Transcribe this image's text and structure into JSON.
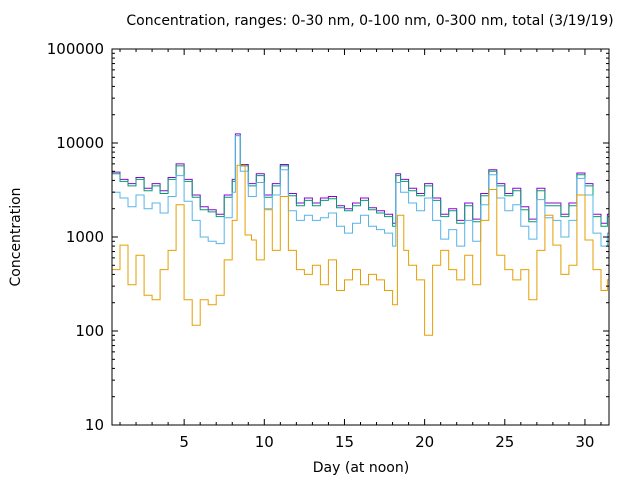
{
  "chart_data": {
    "type": "line",
    "title": "Concentration, ranges: 0-30 nm, 0-100 nm, 0-300 nm, total (3/19/19)",
    "xlabel": "Day (at noon)",
    "ylabel": "Concentration",
    "xlim": [
      0.5,
      31.5
    ],
    "ylim": [
      10,
      100000
    ],
    "yscale": "log",
    "xticks": [
      5,
      10,
      15,
      20,
      25,
      30
    ],
    "yticks": [
      10,
      100,
      1000,
      10000,
      100000
    ],
    "grid": false,
    "legend": "none",
    "series": [
      {
        "name": "total",
        "color": "#9400d3",
        "points": [
          [
            0.5,
            4900
          ],
          [
            1,
            4100
          ],
          [
            1.5,
            3700
          ],
          [
            2,
            4300
          ],
          [
            2.5,
            3300
          ],
          [
            3,
            3700
          ],
          [
            3.5,
            3100
          ],
          [
            4,
            4300
          ],
          [
            4.5,
            6000
          ],
          [
            5,
            4100
          ],
          [
            5.5,
            2800
          ],
          [
            6,
            2100
          ],
          [
            6.5,
            1950
          ],
          [
            7,
            1750
          ],
          [
            7.5,
            2800
          ],
          [
            8,
            4100
          ],
          [
            8.2,
            12500
          ],
          [
            8.5,
            5900
          ],
          [
            9,
            3700
          ],
          [
            9.5,
            4700
          ],
          [
            10,
            2800
          ],
          [
            10.5,
            3700
          ],
          [
            11,
            5900
          ],
          [
            11.5,
            2900
          ],
          [
            12,
            2300
          ],
          [
            12.5,
            2600
          ],
          [
            13,
            2300
          ],
          [
            13.5,
            2600
          ],
          [
            14,
            2700
          ],
          [
            14.5,
            2150
          ],
          [
            15,
            2000
          ],
          [
            15.5,
            2300
          ],
          [
            16,
            2600
          ],
          [
            16.5,
            2050
          ],
          [
            17,
            1900
          ],
          [
            17.5,
            1750
          ],
          [
            18,
            1400
          ],
          [
            18.2,
            4700
          ],
          [
            18.5,
            4100
          ],
          [
            19,
            3300
          ],
          [
            19.5,
            2900
          ],
          [
            20,
            3700
          ],
          [
            20.5,
            2600
          ],
          [
            21,
            1750
          ],
          [
            21.5,
            2000
          ],
          [
            22,
            1500
          ],
          [
            22.5,
            2300
          ],
          [
            23,
            1550
          ],
          [
            23.5,
            2900
          ],
          [
            24,
            5200
          ],
          [
            24.5,
            3700
          ],
          [
            25,
            2900
          ],
          [
            25.5,
            3300
          ],
          [
            26,
            2100
          ],
          [
            26.5,
            1550
          ],
          [
            27,
            3300
          ],
          [
            27.5,
            2300
          ],
          [
            28,
            2300
          ],
          [
            28.5,
            1750
          ],
          [
            29,
            2300
          ],
          [
            29.5,
            4800
          ],
          [
            30,
            3700
          ],
          [
            30.5,
            1750
          ],
          [
            31,
            1400
          ],
          [
            31.4,
            1750
          ]
        ]
      },
      {
        "name": "0-300 nm",
        "color": "#009e73",
        "points": [
          [
            0.5,
            4700
          ],
          [
            1,
            3900
          ],
          [
            1.5,
            3500
          ],
          [
            2,
            4100
          ],
          [
            2.5,
            3100
          ],
          [
            3,
            3500
          ],
          [
            3.5,
            2900
          ],
          [
            4,
            4100
          ],
          [
            4.5,
            5700
          ],
          [
            5,
            3900
          ],
          [
            5.5,
            2650
          ],
          [
            6,
            1950
          ],
          [
            6.5,
            1850
          ],
          [
            7,
            1650
          ],
          [
            7.5,
            2650
          ],
          [
            8,
            3900
          ],
          [
            8.2,
            12000
          ],
          [
            8.5,
            5700
          ],
          [
            9,
            3500
          ],
          [
            9.5,
            4500
          ],
          [
            10,
            2650
          ],
          [
            10.5,
            3500
          ],
          [
            11,
            5700
          ],
          [
            11.5,
            2750
          ],
          [
            12,
            2150
          ],
          [
            12.5,
            2450
          ],
          [
            13,
            2150
          ],
          [
            13.5,
            2450
          ],
          [
            14,
            2550
          ],
          [
            14.5,
            2050
          ],
          [
            15,
            1900
          ],
          [
            15.5,
            2150
          ],
          [
            16,
            2450
          ],
          [
            16.5,
            1950
          ],
          [
            17,
            1800
          ],
          [
            17.5,
            1650
          ],
          [
            18,
            1300
          ],
          [
            18.2,
            4500
          ],
          [
            18.5,
            3900
          ],
          [
            19,
            3100
          ],
          [
            19.5,
            2750
          ],
          [
            20,
            3500
          ],
          [
            20.5,
            2450
          ],
          [
            21,
            1650
          ],
          [
            21.5,
            1900
          ],
          [
            22,
            1400
          ],
          [
            22.5,
            2150
          ],
          [
            23,
            1450
          ],
          [
            23.5,
            2750
          ],
          [
            24,
            5000
          ],
          [
            24.5,
            3500
          ],
          [
            25,
            2750
          ],
          [
            25.5,
            3100
          ],
          [
            26,
            1950
          ],
          [
            26.5,
            1450
          ],
          [
            27,
            3100
          ],
          [
            27.5,
            2150
          ],
          [
            28,
            2150
          ],
          [
            28.5,
            1650
          ],
          [
            29,
            2150
          ],
          [
            29.5,
            4600
          ],
          [
            30,
            3500
          ],
          [
            30.5,
            1650
          ],
          [
            31,
            1300
          ],
          [
            31.4,
            1650
          ]
        ]
      },
      {
        "name": "0-100 nm",
        "color": "#56b4e9",
        "points": [
          [
            0.5,
            3000
          ],
          [
            1,
            2600
          ],
          [
            1.5,
            2100
          ],
          [
            2,
            2800
          ],
          [
            2.5,
            2000
          ],
          [
            3,
            2300
          ],
          [
            3.5,
            1800
          ],
          [
            4,
            2700
          ],
          [
            4.5,
            4500
          ],
          [
            5,
            2400
          ],
          [
            5.5,
            1500
          ],
          [
            6,
            1000
          ],
          [
            6.5,
            900
          ],
          [
            7,
            850
          ],
          [
            7.5,
            1600
          ],
          [
            8,
            3000
          ],
          [
            8.2,
            12000
          ],
          [
            8.5,
            5000
          ],
          [
            9,
            2700
          ],
          [
            9.5,
            3800
          ],
          [
            10,
            2000
          ],
          [
            10.5,
            2800
          ],
          [
            11,
            5200
          ],
          [
            11.5,
            1900
          ],
          [
            12,
            1500
          ],
          [
            12.5,
            1700
          ],
          [
            13,
            1500
          ],
          [
            13.5,
            1600
          ],
          [
            14,
            1800
          ],
          [
            14.5,
            1300
          ],
          [
            15,
            1100
          ],
          [
            15.5,
            1400
          ],
          [
            16,
            1700
          ],
          [
            16.5,
            1300
          ],
          [
            17,
            1200
          ],
          [
            17.5,
            1100
          ],
          [
            18,
            800
          ],
          [
            18.2,
            3800
          ],
          [
            18.5,
            3000
          ],
          [
            19,
            2300
          ],
          [
            19.5,
            1900
          ],
          [
            20,
            2600
          ],
          [
            20.5,
            1500
          ],
          [
            21,
            950
          ],
          [
            21.5,
            1200
          ],
          [
            22,
            800
          ],
          [
            22.5,
            1500
          ],
          [
            23,
            900
          ],
          [
            23.5,
            2200
          ],
          [
            24,
            4600
          ],
          [
            24.5,
            2600
          ],
          [
            25,
            1900
          ],
          [
            25.5,
            2200
          ],
          [
            26,
            1300
          ],
          [
            26.5,
            950
          ],
          [
            27,
            2500
          ],
          [
            27.5,
            1600
          ],
          [
            28,
            1500
          ],
          [
            28.5,
            1000
          ],
          [
            29,
            1500
          ],
          [
            29.5,
            4200
          ],
          [
            30,
            2800
          ],
          [
            30.5,
            1100
          ],
          [
            31,
            800
          ],
          [
            31.4,
            1100
          ]
        ]
      },
      {
        "name": "0-30 nm",
        "color": "#e69f00",
        "points": [
          [
            0.5,
            450
          ],
          [
            1,
            820
          ],
          [
            1.5,
            310
          ],
          [
            2,
            640
          ],
          [
            2.5,
            240
          ],
          [
            3,
            215
          ],
          [
            3.5,
            450
          ],
          [
            4,
            720
          ],
          [
            4.5,
            2200
          ],
          [
            5,
            215
          ],
          [
            5.5,
            115
          ],
          [
            6,
            215
          ],
          [
            6.5,
            190
          ],
          [
            7,
            240
          ],
          [
            7.5,
            570
          ],
          [
            8,
            1500
          ],
          [
            8.3,
            5800
          ],
          [
            8.8,
            1050
          ],
          [
            9.2,
            930
          ],
          [
            9.5,
            570
          ],
          [
            10,
            1950
          ],
          [
            10.5,
            720
          ],
          [
            11,
            2700
          ],
          [
            11.5,
            720
          ],
          [
            12,
            450
          ],
          [
            12.5,
            400
          ],
          [
            13,
            500
          ],
          [
            13.5,
            310
          ],
          [
            14,
            570
          ],
          [
            14.5,
            270
          ],
          [
            15,
            350
          ],
          [
            15.5,
            450
          ],
          [
            16,
            310
          ],
          [
            16.5,
            400
          ],
          [
            17,
            350
          ],
          [
            17.5,
            270
          ],
          [
            18,
            190
          ],
          [
            18.3,
            1700
          ],
          [
            18.7,
            720
          ],
          [
            19,
            500
          ],
          [
            19.5,
            350
          ],
          [
            20,
            90
          ],
          [
            20.5,
            500
          ],
          [
            21,
            720
          ],
          [
            21.5,
            450
          ],
          [
            22,
            350
          ],
          [
            22.5,
            640
          ],
          [
            23,
            310
          ],
          [
            23.5,
            1500
          ],
          [
            24,
            3200
          ],
          [
            24.5,
            640
          ],
          [
            25,
            450
          ],
          [
            25.5,
            350
          ],
          [
            26,
            450
          ],
          [
            26.5,
            215
          ],
          [
            27,
            720
          ],
          [
            27.5,
            1700
          ],
          [
            28,
            820
          ],
          [
            28.5,
            400
          ],
          [
            29,
            500
          ],
          [
            29.5,
            2800
          ],
          [
            30,
            930
          ],
          [
            30.5,
            450
          ],
          [
            31,
            270
          ],
          [
            31.4,
            350
          ]
        ]
      }
    ]
  }
}
